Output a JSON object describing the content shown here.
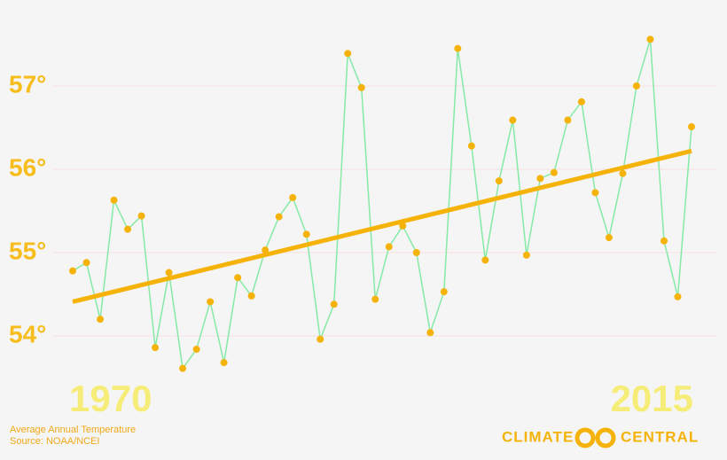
{
  "chart_data": {
    "type": "line",
    "subtitle": "Average Annual Temperature",
    "source": "Source: NOAA/NCEI",
    "logo": [
      "CLIMATE",
      "CENTRAL"
    ],
    "x": [
      1970,
      1971,
      1972,
      1973,
      1974,
      1975,
      1976,
      1977,
      1978,
      1979,
      1980,
      1981,
      1982,
      1983,
      1984,
      1985,
      1986,
      1987,
      1988,
      1989,
      1990,
      1991,
      1992,
      1993,
      1994,
      1995,
      1996,
      1997,
      1998,
      1999,
      2000,
      2001,
      2002,
      2003,
      2004,
      2005,
      2006,
      2007,
      2008,
      2009,
      2010,
      2011,
      2012,
      2013,
      2014,
      2015
    ],
    "series": [
      {
        "color": "#86eaa6",
        "marker_color": "#f5b30a",
        "values": [
          54.78,
          54.88,
          54.2,
          55.63,
          55.28,
          55.44,
          53.86,
          54.76,
          53.61,
          53.84,
          54.41,
          53.68,
          54.7,
          54.48,
          55.03,
          55.43,
          55.66,
          55.22,
          53.96,
          54.38,
          57.39,
          56.98,
          54.44,
          55.07,
          55.32,
          55.0,
          54.04,
          54.53,
          57.45,
          56.28,
          54.91,
          55.86,
          56.59,
          54.97,
          55.89,
          55.96,
          56.59,
          56.81,
          55.72,
          55.18,
          55.95,
          57.0,
          57.56,
          55.14,
          54.47,
          56.51
        ]
      }
    ],
    "trend": {
      "x": [
        1970,
        2015
      ],
      "values": [
        54.41,
        56.22
      ],
      "color": "#f5b30a"
    },
    "xlim": [
      1970,
      2015
    ],
    "xticks": [
      1970,
      2015
    ],
    "ylim": [
      53.5,
      58
    ],
    "yticks": [
      {
        "value": 54,
        "label": "54°"
      },
      {
        "value": 55,
        "label": "55°"
      },
      {
        "value": 56,
        "label": "56°"
      },
      {
        "value": 57,
        "label": "57°"
      }
    ],
    "grid": true
  }
}
